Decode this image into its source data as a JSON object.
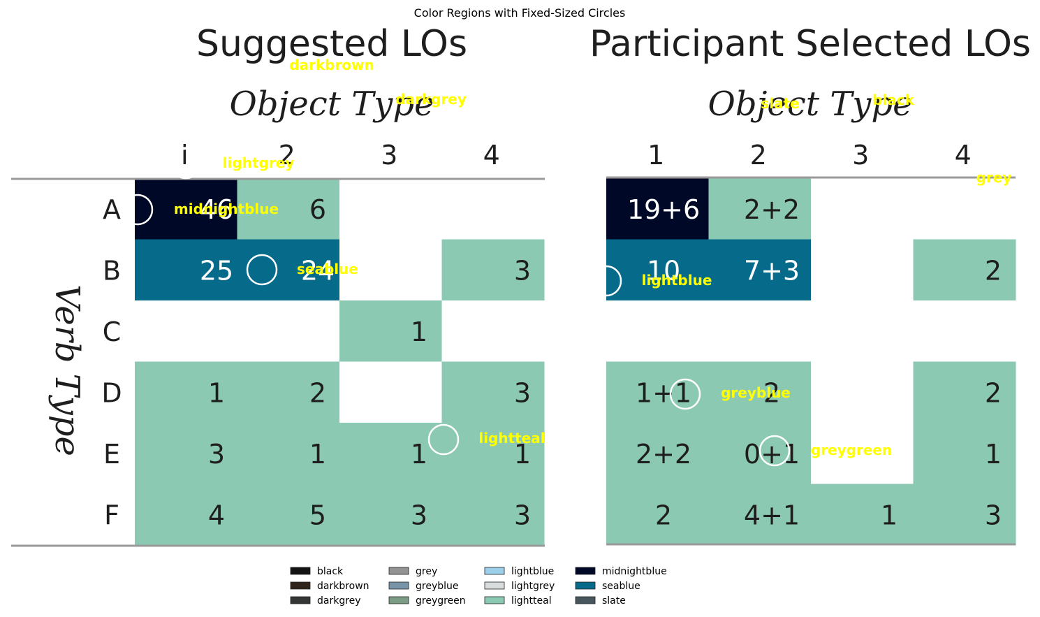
{
  "figure": {
    "title": "Color Regions with Fixed-Sized Circles"
  },
  "colors": {
    "black": "#141414",
    "darkbrown": "#2e241c",
    "darkgrey": "#333634",
    "grey": "#939393",
    "greyblue": "#7895aa",
    "greygreen": "#7a9c84",
    "lightblue": "#9ccfea",
    "lightgrey": "#d8dcdd",
    "lightteal": "#8bc9b3",
    "midnightblue": "#000828",
    "seablue": "#066a8a",
    "slate": "#46565c",
    "ink": "#1e1e1e",
    "marker": "#ffffff",
    "label": "#ffff00"
  },
  "chart_data": [
    {
      "type": "heatmap",
      "title": "Suggested LOs",
      "xlabel": "Object Type",
      "ylabel": "Verb Type",
      "x_ticks": [
        "i",
        "2",
        "3",
        "4"
      ],
      "y_ticks": [
        "A",
        "B",
        "C",
        "D",
        "E",
        "F"
      ],
      "cells": [
        [
          "46",
          "6",
          "",
          ""
        ],
        [
          "25",
          "24",
          "",
          "3"
        ],
        [
          "",
          "",
          "1",
          ""
        ],
        [
          "1",
          "2",
          "",
          "3"
        ],
        [
          "3",
          "1",
          "1",
          "1"
        ],
        [
          "4",
          "5",
          "3",
          "3"
        ]
      ],
      "cell_colors": [
        [
          "midnightblue",
          "lightteal",
          "white",
          "white"
        ],
        [
          "seablue",
          "seablue",
          "white",
          "lightteal"
        ],
        [
          "white",
          "white",
          "lightteal",
          "white"
        ],
        [
          "lightteal",
          "lightteal",
          "white",
          "lightteal"
        ],
        [
          "lightteal",
          "lightteal",
          "lightteal",
          "lightteal"
        ],
        [
          "lightteal",
          "lightteal",
          "lightteal",
          "lightteal"
        ]
      ],
      "annotations": [
        {
          "label": "darkbrown",
          "marker": false
        },
        {
          "label": "darkgrey",
          "marker": false
        },
        {
          "label": "lightgrey",
          "marker": true
        },
        {
          "label": "midnightblue",
          "marker": true
        },
        {
          "label": "seablue",
          "marker": true
        },
        {
          "label": "lightteal",
          "marker": true
        }
      ]
    },
    {
      "type": "heatmap",
      "title": "Participant Selected LOs",
      "xlabel": "Object Type",
      "x_ticks": [
        "1",
        "2",
        "3",
        "4"
      ],
      "y_ticks": [
        "A",
        "B",
        "C",
        "D",
        "E",
        "F"
      ],
      "cells": [
        [
          "19+6",
          "2+2",
          "",
          ""
        ],
        [
          "10",
          "7+3",
          "",
          "2"
        ],
        [
          "",
          "",
          "",
          ""
        ],
        [
          "1+1",
          "2",
          "",
          "2"
        ],
        [
          "2+2",
          "0+1",
          "",
          "1"
        ],
        [
          "2",
          "4+1",
          "1",
          "3"
        ]
      ],
      "cell_colors": [
        [
          "midnightblue",
          "lightteal",
          "white",
          "white"
        ],
        [
          "seablue",
          "seablue",
          "white",
          "lightteal"
        ],
        [
          "white",
          "white",
          "white",
          "white"
        ],
        [
          "lightteal",
          "lightteal",
          "white",
          "lightteal"
        ],
        [
          "lightteal",
          "lightteal",
          "white",
          "lightteal"
        ],
        [
          "lightteal",
          "lightteal",
          "lightteal",
          "lightteal"
        ]
      ],
      "annotations": [
        {
          "label": "slate",
          "marker": false
        },
        {
          "label": "black",
          "marker": false
        },
        {
          "label": "grey",
          "marker": false
        },
        {
          "label": "lightblue",
          "marker": true
        },
        {
          "label": "greyblue",
          "marker": true
        },
        {
          "label": "greygreen",
          "marker": true
        }
      ]
    }
  ],
  "legend": {
    "placement": "bottom-center",
    "entries": [
      "black",
      "darkbrown",
      "darkgrey",
      "grey",
      "greyblue",
      "greygreen",
      "lightblue",
      "lightgrey",
      "lightteal",
      "midnightblue",
      "seablue",
      "slate"
    ]
  }
}
